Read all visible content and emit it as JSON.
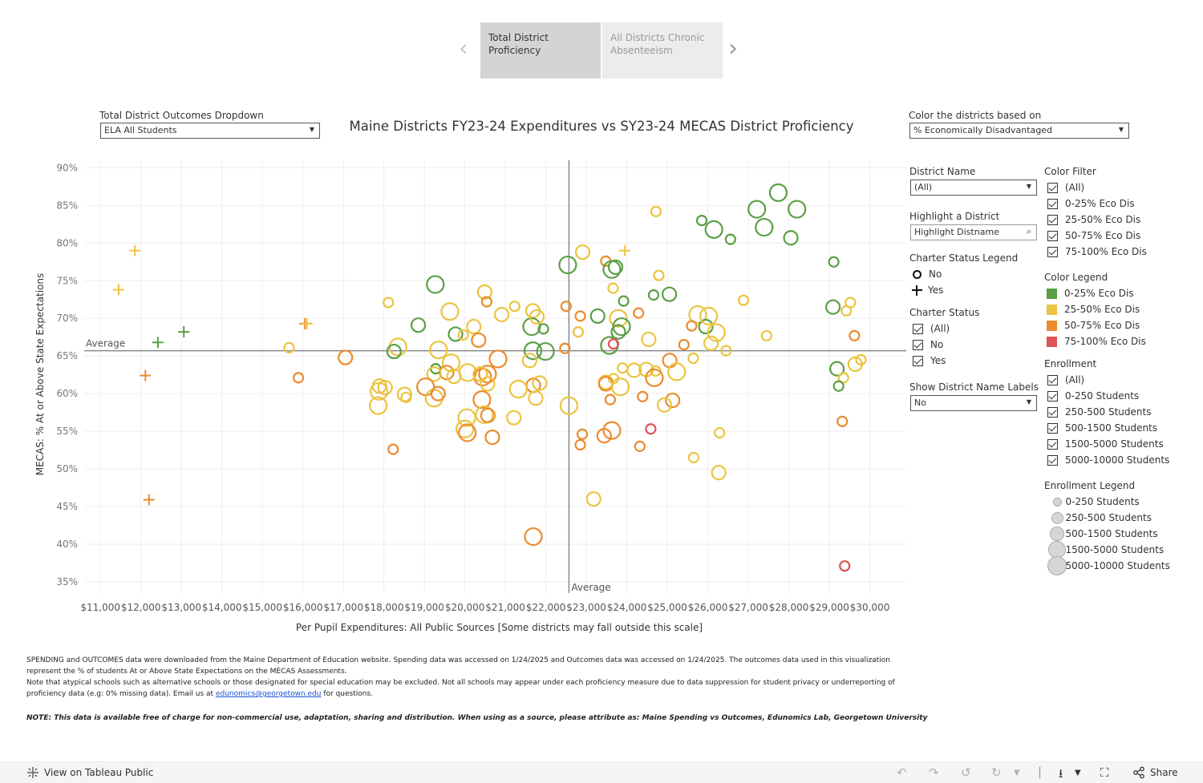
{
  "story": {
    "points": [
      "Total District Proficiency",
      "All Districts Chronic Absenteeism"
    ],
    "prev_icon": "chevron-left-icon",
    "next_icon": "chevron-right-icon"
  },
  "controls": {
    "outcomes_label": "Total District Outcomes Dropdown",
    "outcomes_value": "ELA All Students",
    "color_by_label": "Color the districts based on",
    "color_by_value": "% Economically Disadvantaged",
    "district_name_label": "District Name",
    "district_name_value": "(All)",
    "highlight_label": "Highlight a District",
    "highlight_placeholder": "Highlight Distname",
    "charter_legend_label": "Charter Status Legend",
    "charter_legend": [
      "No",
      "Yes"
    ],
    "charter_status_label": "Charter Status",
    "charter_status": [
      "(All)",
      "No",
      "Yes"
    ],
    "show_labels_label": "Show District Name Labels",
    "show_labels_value": "No",
    "color_filter_label": "Color Filter",
    "color_filter": [
      "(All)",
      "0-25% Eco Dis",
      "25-50% Eco Dis",
      "50-75% Eco Dis",
      "75-100% Eco Dis"
    ],
    "color_legend_label": "Color Legend",
    "color_legend": [
      {
        "label": "0-25% Eco Dis",
        "color": "#5a9f45"
      },
      {
        "label": "25-50% Eco Dis",
        "color": "#ebc440"
      },
      {
        "label": "50-75% Eco Dis",
        "color": "#eb8b2e"
      },
      {
        "label": "75-100% Eco Dis",
        "color": "#df5255"
      }
    ],
    "enrollment_label": "Enrollment",
    "enrollment": [
      "(All)",
      "0-250 Students",
      "250-500 Students",
      "500-1500 Students",
      "1500-5000 Students",
      "5000-10000 Students"
    ],
    "enrollment_legend_label": "Enrollment Legend",
    "enrollment_legend": [
      "0-250 Students",
      "250-500 Students",
      "500-1500 Students",
      "1500-5000 Students",
      "5000-10000 Students"
    ]
  },
  "chart_data": {
    "type": "scatter",
    "title": "Maine Districts FY23-24 Expenditures vs SY23-24 MECAS District Proficiency",
    "xlabel": "Per Pupil Expenditures: All Public Sources [Some districts may fall outside this scale]",
    "ylabel": "MECAS: % At or Above State Expectations",
    "xlim": [
      10600,
      30900
    ],
    "ylim": [
      33.5,
      91
    ],
    "x_ticks": [
      11000,
      12000,
      13000,
      14000,
      15000,
      16000,
      17000,
      18000,
      19000,
      20000,
      21000,
      22000,
      23000,
      24000,
      25000,
      26000,
      27000,
      28000,
      29000,
      30000
    ],
    "x_tick_labels": [
      "$11,000",
      "$12,000",
      "$13,000",
      "$14,000",
      "$15,000",
      "$16,000",
      "$17,000",
      "$18,000",
      "$19,000",
      "$20,000",
      "$21,000",
      "$22,000",
      "$23,000",
      "$24,000",
      "$25,000",
      "$26,000",
      "$27,000",
      "$28,000",
      "$29,000",
      "$30,000"
    ],
    "y_ticks": [
      35,
      40,
      45,
      50,
      55,
      60,
      65,
      70,
      75,
      80,
      85,
      90
    ],
    "y_tick_labels": [
      "35%",
      "40%",
      "45%",
      "50%",
      "55%",
      "60%",
      "65%",
      "70%",
      "75%",
      "80%",
      "85%",
      "90%"
    ],
    "avg_x": 22570,
    "avg_y": 65.7,
    "avg_label": "Average",
    "grid": true,
    "series_colors": {
      "g": "#5a9f45",
      "y": "#ebc440",
      "o": "#eb8b2e",
      "r": "#df5255"
    },
    "points": [
      [
        27740,
        86.7,
        "g",
        4,
        0
      ],
      [
        27210,
        84.5,
        "g",
        4,
        0
      ],
      [
        28200,
        84.5,
        "g",
        4,
        0
      ],
      [
        25850,
        83.0,
        "g",
        2,
        0
      ],
      [
        26150,
        81.8,
        "g",
        4,
        0
      ],
      [
        27390,
        82.1,
        "g",
        4,
        0
      ],
      [
        26560,
        80.5,
        "g",
        2,
        0
      ],
      [
        28050,
        80.7,
        "g",
        3,
        0
      ],
      [
        24720,
        84.2,
        "y",
        2,
        0
      ],
      [
        29110,
        77.5,
        "g",
        2,
        0
      ],
      [
        22540,
        77.1,
        "g",
        4,
        0
      ],
      [
        22910,
        78.8,
        "y",
        3,
        0
      ],
      [
        23480,
        77.6,
        "o",
        2,
        0
      ],
      [
        23630,
        76.5,
        "g",
        4,
        0
      ],
      [
        23720,
        76.8,
        "g",
        3,
        0
      ],
      [
        24790,
        75.7,
        "y",
        2,
        0
      ],
      [
        23660,
        74.0,
        "y",
        2,
        0
      ],
      [
        25050,
        73.2,
        "g",
        3,
        0
      ],
      [
        24660,
        73.1,
        "g",
        2,
        0
      ],
      [
        23920,
        72.3,
        "g",
        2,
        0
      ],
      [
        19270,
        74.5,
        "g",
        4,
        0
      ],
      [
        18110,
        72.1,
        "y",
        2,
        0
      ],
      [
        20490,
        73.5,
        "y",
        3,
        0
      ],
      [
        20540,
        72.2,
        "o",
        2,
        0
      ],
      [
        21230,
        71.6,
        "y",
        2,
        0
      ],
      [
        21680,
        71.0,
        "y",
        3,
        0
      ],
      [
        19630,
        70.9,
        "y",
        4,
        0
      ],
      [
        20910,
        70.5,
        "y",
        3,
        0
      ],
      [
        22500,
        71.6,
        "o",
        2,
        0
      ],
      [
        22850,
        70.3,
        "o",
        2,
        0
      ],
      [
        23280,
        70.3,
        "g",
        3,
        0
      ],
      [
        24290,
        70.7,
        "o",
        2,
        0
      ],
      [
        25750,
        70.5,
        "y",
        4,
        0
      ],
      [
        26880,
        72.4,
        "y",
        2,
        0
      ],
      [
        29520,
        72.1,
        "y",
        2,
        0
      ],
      [
        29420,
        71.0,
        "y",
        2,
        0
      ],
      [
        29090,
        71.5,
        "g",
        3,
        0
      ],
      [
        18850,
        69.1,
        "g",
        3,
        0
      ],
      [
        20220,
        68.9,
        "y",
        3,
        0
      ],
      [
        21650,
        68.9,
        "g",
        4,
        0
      ],
      [
        21940,
        68.6,
        "g",
        2,
        0
      ],
      [
        21780,
        70.2,
        "y",
        3,
        0
      ],
      [
        23790,
        70.0,
        "y",
        4,
        0
      ],
      [
        23870,
        68.9,
        "g",
        4,
        0
      ],
      [
        23790,
        68.2,
        "g",
        3,
        0
      ],
      [
        22800,
        68.2,
        "y",
        2,
        0
      ],
      [
        24540,
        67.2,
        "y",
        3,
        0
      ],
      [
        25600,
        69.0,
        "o",
        2,
        0
      ],
      [
        25950,
        68.9,
        "g",
        3,
        0
      ],
      [
        26020,
        70.3,
        "y",
        4,
        0
      ],
      [
        26210,
        68.1,
        "y",
        4,
        0
      ],
      [
        27450,
        67.7,
        "y",
        2,
        0
      ],
      [
        29620,
        67.7,
        "o",
        2,
        0
      ],
      [
        26080,
        66.7,
        "y",
        3,
        0
      ],
      [
        25410,
        66.5,
        "o",
        2,
        0
      ],
      [
        23570,
        66.4,
        "g",
        4,
        0
      ],
      [
        23670,
        66.6,
        "r",
        2,
        0
      ],
      [
        19770,
        67.9,
        "g",
        3,
        0
      ],
      [
        19960,
        67.8,
        "y",
        2,
        0
      ],
      [
        20340,
        67.1,
        "o",
        3,
        0
      ],
      [
        18350,
        66.2,
        "y",
        4,
        0
      ],
      [
        18250,
        65.6,
        "g",
        3,
        0
      ],
      [
        19350,
        65.8,
        "y",
        4,
        0
      ],
      [
        21680,
        65.7,
        "g",
        4,
        0
      ],
      [
        21990,
        65.6,
        "g",
        4,
        0
      ],
      [
        22470,
        66.0,
        "o",
        2,
        0
      ],
      [
        20820,
        64.6,
        "o",
        4,
        0
      ],
      [
        21600,
        64.4,
        "y",
        3,
        0
      ],
      [
        26450,
        65.7,
        "y",
        2,
        0
      ],
      [
        25640,
        64.7,
        "y",
        2,
        0
      ],
      [
        25060,
        64.4,
        "o",
        3,
        0
      ],
      [
        19660,
        64.1,
        "y",
        4,
        0
      ],
      [
        15660,
        66.1,
        "y",
        2,
        0
      ],
      [
        17050,
        64.8,
        "o",
        3,
        0
      ],
      [
        29780,
        64.5,
        "y",
        2,
        0
      ],
      [
        29640,
        63.9,
        "y",
        3,
        0
      ],
      [
        29190,
        63.3,
        "g",
        3,
        0
      ],
      [
        29350,
        62.1,
        "y",
        2,
        0
      ],
      [
        29230,
        61.0,
        "g",
        2,
        0
      ],
      [
        25230,
        62.9,
        "y",
        4,
        0
      ],
      [
        24710,
        63.0,
        "y",
        2,
        0
      ],
      [
        24480,
        63.2,
        "y",
        3,
        0
      ],
      [
        24180,
        63.1,
        "y",
        3,
        0
      ],
      [
        23890,
        63.4,
        "y",
        2,
        0
      ],
      [
        23670,
        62.0,
        "y",
        2,
        0
      ],
      [
        23480,
        61.5,
        "y",
        3,
        0
      ],
      [
        23480,
        61.3,
        "o",
        3,
        0
      ],
      [
        23840,
        60.9,
        "y",
        4,
        0
      ],
      [
        24680,
        62.1,
        "o",
        4,
        0
      ],
      [
        24390,
        59.6,
        "o",
        2,
        0
      ],
      [
        25130,
        59.1,
        "o",
        3,
        0
      ],
      [
        24930,
        58.5,
        "y",
        3,
        0
      ],
      [
        23590,
        59.2,
        "o",
        2,
        0
      ],
      [
        19280,
        63.3,
        "g",
        2,
        0
      ],
      [
        19550,
        62.8,
        "o",
        3,
        0
      ],
      [
        19240,
        62.6,
        "y",
        3,
        0
      ],
      [
        19730,
        62.3,
        "y",
        3,
        0
      ],
      [
        20070,
        62.8,
        "y",
        4,
        0
      ],
      [
        20440,
        62.2,
        "o",
        4,
        0
      ],
      [
        20560,
        62.6,
        "o",
        4,
        0
      ],
      [
        20380,
        62.6,
        "y",
        3,
        0
      ],
      [
        20560,
        61.3,
        "y",
        3,
        0
      ],
      [
        21690,
        61.1,
        "o",
        3,
        0
      ],
      [
        21850,
        61.4,
        "y",
        3,
        0
      ],
      [
        21320,
        60.6,
        "y",
        4,
        0
      ],
      [
        21750,
        59.4,
        "y",
        3,
        0
      ],
      [
        17880,
        60.3,
        "y",
        4,
        0
      ],
      [
        17890,
        61.0,
        "y",
        3,
        0
      ],
      [
        18030,
        60.8,
        "y",
        3,
        0
      ],
      [
        18510,
        59.9,
        "y",
        3,
        0
      ],
      [
        18550,
        59.5,
        "y",
        2,
        0
      ],
      [
        15890,
        62.1,
        "o",
        2,
        0
      ],
      [
        19030,
        60.9,
        "o",
        4,
        0
      ],
      [
        19240,
        59.4,
        "y",
        4,
        0
      ],
      [
        19340,
        60.0,
        "o",
        3,
        0
      ],
      [
        20420,
        59.2,
        "o",
        4,
        0
      ],
      [
        17860,
        58.4,
        "y",
        4,
        0
      ],
      [
        22570,
        58.4,
        "y",
        4,
        0
      ],
      [
        20050,
        56.8,
        "y",
        4,
        0
      ],
      [
        20480,
        57.2,
        "y",
        4,
        0
      ],
      [
        20570,
        57.1,
        "o",
        3,
        0
      ],
      [
        21210,
        56.8,
        "y",
        3,
        0
      ],
      [
        20000,
        55.3,
        "y",
        4,
        0
      ],
      [
        20060,
        54.8,
        "o",
        4,
        0
      ],
      [
        20680,
        54.2,
        "o",
        3,
        0
      ],
      [
        22900,
        54.6,
        "o",
        2,
        0
      ],
      [
        23440,
        54.4,
        "o",
        3,
        0
      ],
      [
        23630,
        55.1,
        "o",
        4,
        0
      ],
      [
        24590,
        55.3,
        "r",
        2,
        0
      ],
      [
        26290,
        54.8,
        "y",
        2,
        0
      ],
      [
        29320,
        56.3,
        "o",
        2,
        0
      ],
      [
        22850,
        53.2,
        "o",
        2,
        0
      ],
      [
        24320,
        53.0,
        "o",
        2,
        0
      ],
      [
        18230,
        52.6,
        "o",
        2,
        0
      ],
      [
        25650,
        51.5,
        "y",
        2,
        0
      ],
      [
        26270,
        49.5,
        "y",
        3,
        0
      ],
      [
        23180,
        46.0,
        "y",
        3,
        0
      ],
      [
        21690,
        41.0,
        "o",
        4,
        0
      ],
      [
        29380,
        37.1,
        "r",
        2,
        0
      ],
      [
        11850,
        79.0,
        "y",
        0,
        1
      ],
      [
        23950,
        79.0,
        "y",
        0,
        1
      ],
      [
        11450,
        73.8,
        "y",
        0,
        1
      ],
      [
        16050,
        69.3,
        "o",
        0,
        1
      ],
      [
        16100,
        69.3,
        "y",
        0,
        1
      ],
      [
        13060,
        68.2,
        "g",
        0,
        1
      ],
      [
        12420,
        66.8,
        "g",
        0,
        1
      ],
      [
        12110,
        62.4,
        "o",
        0,
        1
      ],
      [
        12200,
        45.9,
        "o",
        0,
        1
      ]
    ]
  },
  "notes": {
    "line1": "SPENDING and OUTCOMES data were downloaded from the Maine Department of Education website. Spending data was accessed on 1/24/2025 and Outcomes data was accessed on 1/24/2025. The outcomes data used in this visualization represent the % of students At or Above State Expectations on the MECAS Assessments.",
    "line2": "Note that atypical schools such as alternative schools or those designated for special education may be excluded. Not all schools may appear under each proficiency measure due to data suppression for student privacy or underreporting of proficiency data (e.g: 0% missing data). Email us at",
    "email": "edunomics@georgetown.edu",
    "line2_end": "for questions.",
    "attribution": "NOTE: This data is available free of charge for non-commercial use, adaptation, sharing and distribution. When using as a source, please attribute as: Maine Spending vs Outcomes, Edunomics Lab, Georgetown University"
  },
  "footer": {
    "view_label": "View on Tableau Public",
    "share_label": "Share",
    "icons": [
      "undo-icon",
      "redo-icon",
      "revert-icon",
      "refresh-icon",
      "pause-icon",
      "download-icon",
      "fullscreen-icon",
      "share-icon"
    ]
  }
}
